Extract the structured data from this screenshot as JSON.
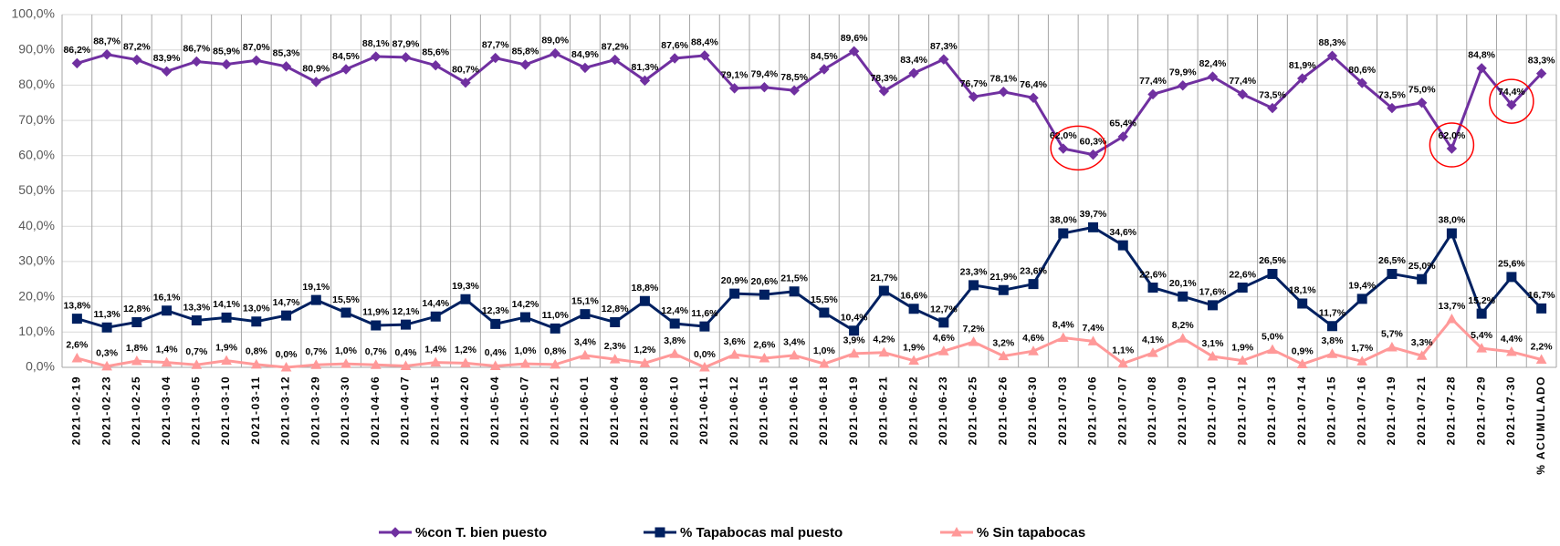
{
  "chart_data": {
    "type": "line",
    "categories": [
      "2021-02-19",
      "2021-02-23",
      "2021-02-25",
      "2021-03-04",
      "2021-03-05",
      "2021-03-10",
      "2021-03-11",
      "2021-03-12",
      "2021-03-29",
      "2021-03-30",
      "2021-04-06",
      "2021-04-07",
      "2021-04-15",
      "2021-04-20",
      "2021-05-04",
      "2021-05-07",
      "2021-05-21",
      "2021-06-01",
      "2021-06-04",
      "2021-06-08",
      "2021-06-10",
      "2021-06-11",
      "2021-06-12",
      "2021-06-15",
      "2021-06-16",
      "2021-06-18",
      "2021-06-19",
      "2021-06-21",
      "2021-06-22",
      "2021-06-23",
      "2021-06-25",
      "2021-06-26",
      "2021-06-30",
      "2021-07-03",
      "2021-07-06",
      "2021-07-07",
      "2021-07-08",
      "2021-07-09",
      "2021-07-10",
      "2021-07-12",
      "2021-07-13",
      "2021-07-14",
      "2021-07-15",
      "2021-07-16",
      "2021-07-19",
      "2021-07-21",
      "2021-07-28",
      "2021-07-29",
      "2021-07-30",
      "% ACUMULADO"
    ],
    "series": [
      {
        "name": "%con T. bien puesto",
        "color": "#7030a0",
        "marker": "diamond",
        "values": [
          86.2,
          88.7,
          87.2,
          83.9,
          86.7,
          85.9,
          87.0,
          85.3,
          80.9,
          84.5,
          88.1,
          87.9,
          85.6,
          80.7,
          87.7,
          85.8,
          89.0,
          84.9,
          87.2,
          81.3,
          87.6,
          88.4,
          79.1,
          79.4,
          78.5,
          84.5,
          89.6,
          78.3,
          83.4,
          87.3,
          76.7,
          78.1,
          76.4,
          62.0,
          60.3,
          65.4,
          77.4,
          79.9,
          82.4,
          77.4,
          73.5,
          81.9,
          88.3,
          80.6,
          73.5,
          75.0,
          62.0,
          84.8,
          74.4,
          83.3
        ],
        "value_labels": [
          "86,2%",
          "88,7%",
          "87,2%",
          "83,9%",
          "86,7%",
          "85,9%",
          "87,0%",
          "85,3%",
          "80,9%",
          "84,5%",
          "88,1%",
          "87,9%",
          "85,6%",
          "80,7%",
          "87,7%",
          "85,8%",
          "89,0%",
          "84,9%",
          "87,2%",
          "81,3%",
          "87,6%",
          "88,4%",
          "79,1%",
          "79,4%",
          "78,5%",
          "84,5%",
          "89,6%",
          "78,3%",
          "83,4%",
          "87,3%",
          "76,7%",
          "78,1%",
          "76,4%",
          "62,0%",
          "60,3%",
          "65,4%",
          "77,4%",
          "79,9%",
          "82,4%",
          "77,4%",
          "73,5%",
          "81,9%",
          "88,3%",
          "80,6%",
          "73,5%",
          "75,0%",
          "62,0%",
          "84,8%",
          "74,4%",
          "83,3%"
        ]
      },
      {
        "name": "% Tapabocas mal puesto",
        "color": "#002060",
        "marker": "square",
        "values": [
          13.8,
          11.3,
          12.8,
          16.1,
          13.3,
          14.1,
          13.0,
          14.7,
          19.1,
          15.5,
          11.9,
          12.1,
          14.4,
          19.3,
          12.3,
          14.2,
          11.0,
          15.1,
          12.8,
          18.8,
          12.4,
          11.6,
          20.9,
          20.6,
          21.5,
          15.5,
          10.4,
          21.7,
          16.6,
          12.7,
          23.3,
          21.9,
          23.6,
          38.0,
          39.7,
          34.6,
          22.6,
          20.1,
          17.6,
          22.6,
          26.5,
          18.1,
          11.7,
          19.4,
          26.5,
          25.0,
          38.0,
          15.2,
          25.6,
          16.7
        ],
        "value_labels": [
          "13,8%",
          "11,3%",
          "12,8%",
          "16,1%",
          "13,3%",
          "14,1%",
          "13,0%",
          "14,7%",
          "19,1%",
          "15,5%",
          "11,9%",
          "12,1%",
          "14,4%",
          "19,3%",
          "12,3%",
          "14,2%",
          "11,0%",
          "15,1%",
          "12,8%",
          "18,8%",
          "12,4%",
          "11,6%",
          "20,9%",
          "20,6%",
          "21,5%",
          "15,5%",
          "10,4%",
          "21,7%",
          "16,6%",
          "12,7%",
          "23,3%",
          "21,9%",
          "23,6%",
          "38,0%",
          "39,7%",
          "34,6%",
          "22,6%",
          "20,1%",
          "17,6%",
          "22,6%",
          "26,5%",
          "18,1%",
          "11,7%",
          "19,4%",
          "26,5%",
          "25,0%",
          "38,0%",
          "15,2%",
          "25,6%",
          "16,7%"
        ]
      },
      {
        "name": "% Sin tapabocas",
        "color": "#ff9999",
        "marker": "triangle",
        "values": [
          2.6,
          0.3,
          1.8,
          1.4,
          0.7,
          1.9,
          0.8,
          0.0,
          0.7,
          1.0,
          0.7,
          0.4,
          1.4,
          1.2,
          0.4,
          1.0,
          0.8,
          3.4,
          2.3,
          1.2,
          3.8,
          0.0,
          3.6,
          2.6,
          3.4,
          1.0,
          3.9,
          4.2,
          1.9,
          4.6,
          7.2,
          3.2,
          4.6,
          8.4,
          7.4,
          1.1,
          4.1,
          8.2,
          3.1,
          1.9,
          5.0,
          0.9,
          3.8,
          1.7,
          5.7,
          3.3,
          13.7,
          5.4,
          4.4,
          2.2
        ],
        "value_labels": [
          "2,6%",
          "0,3%",
          "1,8%",
          "1,4%",
          "0,7%",
          "1,9%",
          "0,8%",
          "0,0%",
          "0,7%",
          "1,0%",
          "0,7%",
          "0,4%",
          "1,4%",
          "1,2%",
          "0,4%",
          "1,0%",
          "0,8%",
          "3,4%",
          "2,3%",
          "1,2%",
          "3,8%",
          "0,0%",
          "3,6%",
          "2,6%",
          "3,4%",
          "1,0%",
          "3,9%",
          "4,2%",
          "1,9%",
          "4,6%",
          "7,2%",
          "3,2%",
          "4,6%",
          "8,4%",
          "7,4%",
          "1,1%",
          "4,1%",
          "8,2%",
          "3,1%",
          "1,9%",
          "5,0%",
          "0,9%",
          "3,8%",
          "1,7%",
          "5,7%",
          "3,3%",
          "13,7%",
          "5,4%",
          "4,4%",
          "2,2%"
        ]
      }
    ],
    "ylim": [
      0,
      100
    ],
    "yticks": [
      {
        "value": 0,
        "label": "0,0%"
      },
      {
        "value": 10,
        "label": "10,0%"
      },
      {
        "value": 20,
        "label": "20,0%"
      },
      {
        "value": 30,
        "label": "30,0%"
      },
      {
        "value": 40,
        "label": "40,0%"
      },
      {
        "value": 50,
        "label": "50,0%"
      },
      {
        "value": 60,
        "label": "60,0%"
      },
      {
        "value": 70,
        "label": "70,0%"
      },
      {
        "value": 80,
        "label": "80,0%"
      },
      {
        "value": 90,
        "label": "90,0%"
      },
      {
        "value": 100,
        "label": "100,0%"
      }
    ],
    "grid": true,
    "legend": "bottom"
  }
}
